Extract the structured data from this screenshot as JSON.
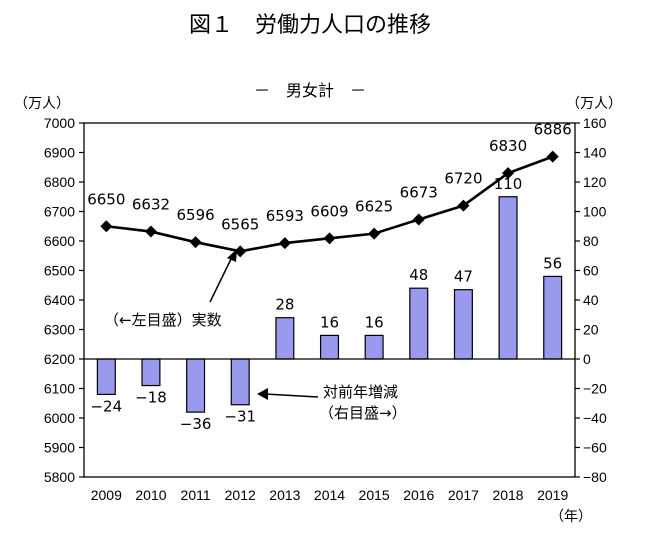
{
  "chart_data": {
    "type": "bar+line",
    "title": "図１　労働力人口の推移",
    "subtitle": "－　男女計　－",
    "left_axis_unit": "（万人）",
    "right_axis_unit": "（万人）",
    "x_unit": "（年）",
    "categories": [
      "2009",
      "2010",
      "2011",
      "2012",
      "2013",
      "2014",
      "2015",
      "2016",
      "2017",
      "2018",
      "2019"
    ],
    "left_axis": {
      "min": 5800,
      "max": 7000,
      "step": 100,
      "ticks": [
        "7000",
        "6900",
        "6800",
        "6700",
        "6600",
        "6500",
        "6400",
        "6300",
        "6200",
        "6100",
        "6000",
        "5900",
        "5800"
      ]
    },
    "right_axis": {
      "min": -80,
      "max": 160,
      "step": 20,
      "ticks": [
        "160",
        "140",
        "120",
        "100",
        "80",
        "60",
        "40",
        "20",
        "0",
        "−20",
        "−40",
        "−60",
        "−80"
      ]
    },
    "series": [
      {
        "name": "実数",
        "axis": "left",
        "type": "line",
        "values": [
          6650,
          6632,
          6596,
          6565,
          6593,
          6609,
          6625,
          6673,
          6720,
          6830,
          6886
        ],
        "labels": [
          "6650",
          "6632",
          "6596",
          "6565",
          "6593",
          "6609",
          "6625",
          "6673",
          "6720",
          "6830",
          "6886"
        ]
      },
      {
        "name": "対前年増減",
        "axis": "right",
        "type": "bar",
        "values": [
          -24,
          -18,
          -36,
          -31,
          28,
          16,
          16,
          48,
          47,
          110,
          56
        ],
        "labels": [
          "−24",
          "−18",
          "−36",
          "−31",
          "28",
          "16",
          "16",
          "48",
          "47",
          "110",
          "56"
        ]
      }
    ],
    "annotations": {
      "line_note": "（←左目盛）実数",
      "bar_note_1": "対前年増減",
      "bar_note_2": "（右目盛→）"
    },
    "colors": {
      "bar_fill": "#9999ee",
      "bar_stroke": "#000000",
      "line": "#000000"
    }
  }
}
